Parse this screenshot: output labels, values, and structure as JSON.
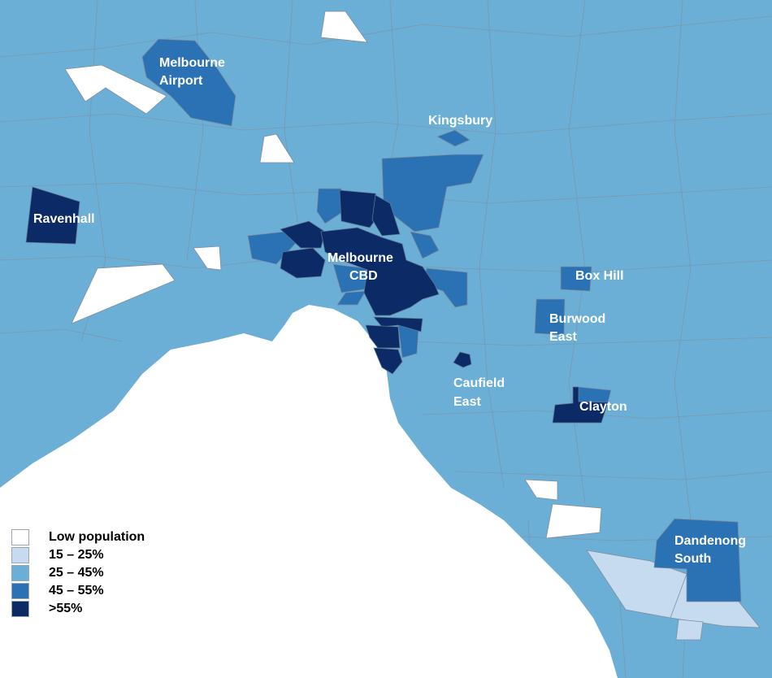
{
  "colors": {
    "low_population": "#ffffff",
    "band_15_25": "#c6dbef",
    "band_25_45": "#6baed6",
    "band_45_55": "#2b72b5",
    "band_gt_55": "#0b2a66",
    "border": "#7f8fa0",
    "water": "#ffffff"
  },
  "labels": {
    "melbourne_airport": [
      "Melbourne",
      "Airport"
    ],
    "kingsbury": "Kingsbury",
    "ravenhall": "Ravenhall",
    "melbourne_cbd": [
      "Melbourne",
      "CBD"
    ],
    "box_hill": "Box Hill",
    "burwood_east": [
      "Burwood",
      "East"
    ],
    "caufield_east": [
      "Caufield",
      "East"
    ],
    "clayton": "Clayton",
    "dandenong_south": [
      "Dandenong",
      "South"
    ]
  },
  "legend": [
    {
      "label": "Low population",
      "color": "#ffffff"
    },
    {
      "label": "15 – 25%",
      "color": "#c6dbef"
    },
    {
      "label": "25 – 45%",
      "color": "#6baed6"
    },
    {
      "label": "45 – 55%",
      "color": "#2b72b5"
    },
    {
      "label": ">55%",
      "color": "#0b2a66"
    }
  ]
}
